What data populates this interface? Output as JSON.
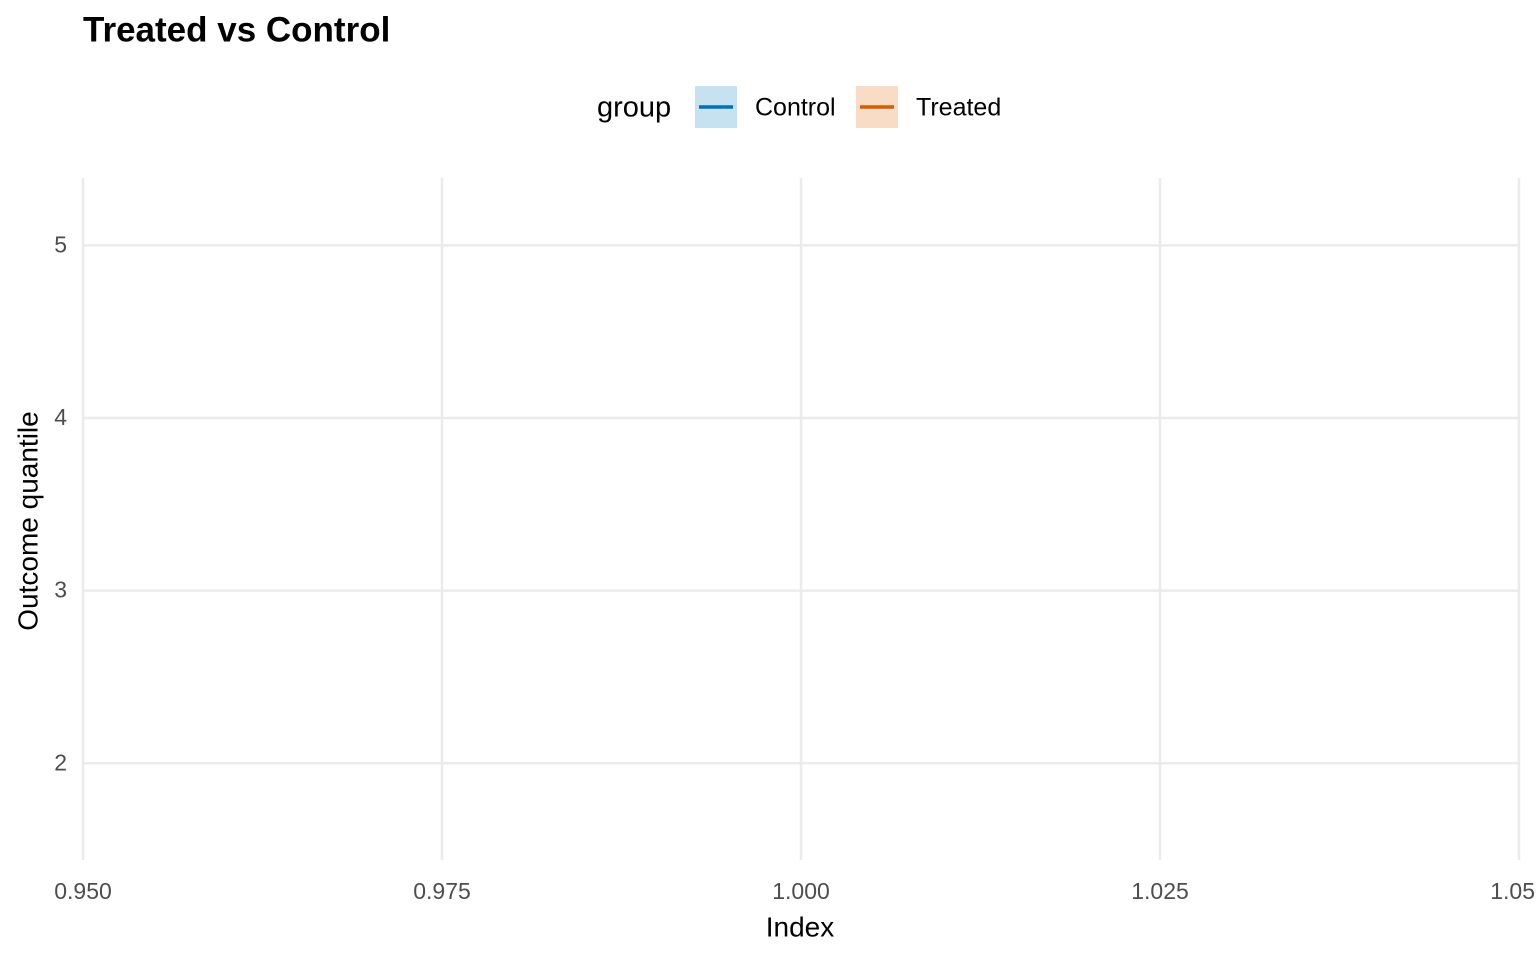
{
  "chart_data": {
    "type": "line",
    "title": "Treated vs Control",
    "x_label": "Index",
    "y_label": "Outcome quantile",
    "legend_title": "group",
    "legend_position": "top",
    "series": [
      {
        "name": "Control",
        "color": "#0072B2",
        "fill": "#c6e2f1"
      },
      {
        "name": "Treated",
        "color": "#D55E00",
        "fill": "#f8dcc6"
      }
    ],
    "xlim": [
      0.95,
      1.05
    ],
    "xticks": [
      {
        "value": 0.95,
        "label": "0.950"
      },
      {
        "value": 0.975,
        "label": "0.975"
      },
      {
        "value": 1,
        "label": "1.000"
      },
      {
        "value": 1.025,
        "label": "1.025"
      },
      {
        "value": 1.05,
        "label": "1.050"
      }
    ],
    "ylim": [
      1.44,
      5.39
    ],
    "yticks": [
      2,
      3,
      4,
      5
    ],
    "grid": true
  }
}
